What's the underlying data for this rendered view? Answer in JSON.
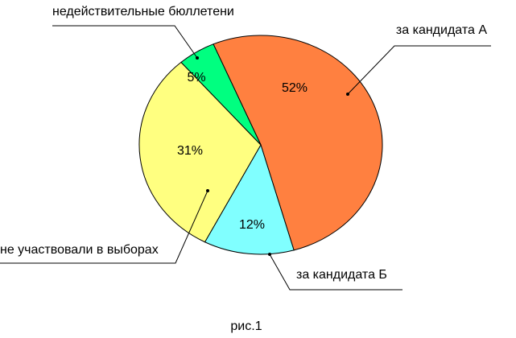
{
  "chart_data": {
    "type": "pie",
    "title": "рис.1",
    "categories": [
      "за кандидата А",
      "за кандидата Б",
      "не участвовали в выборах",
      "недействительные бюллетени"
    ],
    "values": [
      52,
      12,
      31,
      5
    ],
    "value_labels": [
      "52%",
      "12%",
      "31%",
      "5%"
    ],
    "colors": [
      "#ff8040",
      "#80ffff",
      "#ffff80",
      "#00ff80"
    ]
  }
}
